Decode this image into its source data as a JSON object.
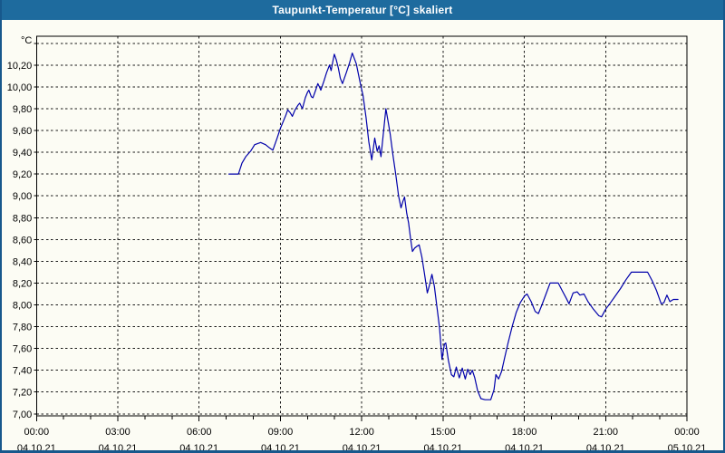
{
  "window": {
    "title": "Taupunkt-Temperatur [°C] skaliert"
  },
  "colors": {
    "titlebar": "#1E6B9E",
    "frame": "#17588C",
    "background": "#FCFCF4",
    "series_line": "#0000AA",
    "grid": "#1a1a1a",
    "text": "#000000"
  },
  "chart_data": {
    "type": "line",
    "title": "Taupunkt-Temperatur [°C] skaliert",
    "y_unit": "°C",
    "xlabel": "",
    "ylabel": "",
    "grid": "dashed",
    "legend_position": "none",
    "ylim": [
      7.0,
      10.4
    ],
    "y_tick_step": 0.2,
    "xlim_hours": [
      0,
      24
    ],
    "x_minor_tick_hours": 1,
    "y_ticks": [
      {
        "v": 10.4,
        "label": ""
      },
      {
        "v": 10.2,
        "label": "10,20"
      },
      {
        "v": 10.0,
        "label": "10,00"
      },
      {
        "v": 9.8,
        "label": "9,80"
      },
      {
        "v": 9.6,
        "label": "9,60"
      },
      {
        "v": 9.4,
        "label": "9,40"
      },
      {
        "v": 9.2,
        "label": "9,20"
      },
      {
        "v": 9.0,
        "label": "9,00"
      },
      {
        "v": 8.8,
        "label": "8,80"
      },
      {
        "v": 8.6,
        "label": "8,60"
      },
      {
        "v": 8.4,
        "label": "8,40"
      },
      {
        "v": 8.2,
        "label": "8,20"
      },
      {
        "v": 8.0,
        "label": "8,00"
      },
      {
        "v": 7.8,
        "label": "7,80"
      },
      {
        "v": 7.6,
        "label": "7,60"
      },
      {
        "v": 7.4,
        "label": "7,40"
      },
      {
        "v": 7.2,
        "label": "7,20"
      },
      {
        "v": 7.0,
        "label": "7,00"
      }
    ],
    "x_ticks": [
      {
        "hour": 0,
        "time": "00:00",
        "date": "04.10.21"
      },
      {
        "hour": 3,
        "time": "03:00",
        "date": "04.10.21"
      },
      {
        "hour": 6,
        "time": "06:00",
        "date": "04.10.21"
      },
      {
        "hour": 9,
        "time": "09:00",
        "date": "04.10.21"
      },
      {
        "hour": 12,
        "time": "12:00",
        "date": "04.10.21"
      },
      {
        "hour": 15,
        "time": "15:00",
        "date": "04.10.21"
      },
      {
        "hour": 18,
        "time": "18:00",
        "date": "04.10.21"
      },
      {
        "hour": 21,
        "time": "21:00",
        "date": "04.10.21"
      },
      {
        "hour": 24,
        "time": "00:00",
        "date": "05.10.21"
      }
    ],
    "series": [
      {
        "name": "Taupunkt-Temperatur",
        "color": "#0000AA",
        "points_hour_value": [
          [
            7.1,
            9.2
          ],
          [
            7.45,
            9.2
          ],
          [
            7.58,
            9.3
          ],
          [
            7.72,
            9.36
          ],
          [
            7.9,
            9.41
          ],
          [
            8.05,
            9.47
          ],
          [
            8.27,
            9.49
          ],
          [
            8.45,
            9.47
          ],
          [
            8.6,
            9.44
          ],
          [
            8.72,
            9.42
          ],
          [
            8.88,
            9.53
          ],
          [
            9.0,
            9.62
          ],
          [
            9.1,
            9.68
          ],
          [
            9.2,
            9.74
          ],
          [
            9.27,
            9.79
          ],
          [
            9.37,
            9.76
          ],
          [
            9.44,
            9.73
          ],
          [
            9.54,
            9.79
          ],
          [
            9.64,
            9.83
          ],
          [
            9.71,
            9.85
          ],
          [
            9.81,
            9.8
          ],
          [
            9.92,
            9.9
          ],
          [
            10.0,
            9.95
          ],
          [
            10.05,
            9.97
          ],
          [
            10.14,
            9.91
          ],
          [
            10.2,
            9.9
          ],
          [
            10.3,
            9.97
          ],
          [
            10.38,
            10.03
          ],
          [
            10.44,
            10.0
          ],
          [
            10.49,
            9.97
          ],
          [
            10.6,
            10.05
          ],
          [
            10.7,
            10.13
          ],
          [
            10.81,
            10.2
          ],
          [
            10.87,
            10.15
          ],
          [
            10.93,
            10.23
          ],
          [
            10.99,
            10.3
          ],
          [
            11.06,
            10.25
          ],
          [
            11.14,
            10.17
          ],
          [
            11.21,
            10.08
          ],
          [
            11.29,
            10.03
          ],
          [
            11.43,
            10.13
          ],
          [
            11.55,
            10.22
          ],
          [
            11.65,
            10.31
          ],
          [
            11.8,
            10.21
          ],
          [
            11.94,
            10.04
          ],
          [
            12.05,
            9.92
          ],
          [
            12.16,
            9.72
          ],
          [
            12.26,
            9.5
          ],
          [
            12.37,
            9.33
          ],
          [
            12.48,
            9.53
          ],
          [
            12.57,
            9.41
          ],
          [
            12.64,
            9.46
          ],
          [
            12.71,
            9.36
          ],
          [
            12.8,
            9.58
          ],
          [
            12.89,
            9.8
          ],
          [
            12.98,
            9.67
          ],
          [
            13.05,
            9.57
          ],
          [
            13.15,
            9.38
          ],
          [
            13.26,
            9.19
          ],
          [
            13.36,
            9.0
          ],
          [
            13.45,
            8.89
          ],
          [
            13.52,
            8.95
          ],
          [
            13.58,
            8.99
          ],
          [
            13.66,
            8.84
          ],
          [
            13.73,
            8.75
          ],
          [
            13.8,
            8.61
          ],
          [
            13.87,
            8.49
          ],
          [
            13.95,
            8.52
          ],
          [
            14.05,
            8.54
          ],
          [
            14.12,
            8.55
          ],
          [
            14.22,
            8.44
          ],
          [
            14.32,
            8.28
          ],
          [
            14.42,
            8.11
          ],
          [
            14.5,
            8.18
          ],
          [
            14.59,
            8.28
          ],
          [
            14.68,
            8.17
          ],
          [
            14.77,
            7.99
          ],
          [
            14.87,
            7.79
          ],
          [
            14.96,
            7.5
          ],
          [
            15.05,
            7.64
          ],
          [
            15.1,
            7.65
          ],
          [
            15.2,
            7.49
          ],
          [
            15.31,
            7.36
          ],
          [
            15.4,
            7.34
          ],
          [
            15.49,
            7.43
          ],
          [
            15.6,
            7.33
          ],
          [
            15.71,
            7.42
          ],
          [
            15.82,
            7.32
          ],
          [
            15.91,
            7.41
          ],
          [
            16.0,
            7.36
          ],
          [
            16.08,
            7.4
          ],
          [
            16.17,
            7.33
          ],
          [
            16.28,
            7.21
          ],
          [
            16.4,
            7.14
          ],
          [
            16.55,
            7.13
          ],
          [
            16.76,
            7.13
          ],
          [
            16.88,
            7.22
          ],
          [
            16.95,
            7.36
          ],
          [
            17.05,
            7.32
          ],
          [
            17.16,
            7.39
          ],
          [
            17.28,
            7.52
          ],
          [
            17.4,
            7.65
          ],
          [
            17.55,
            7.8
          ],
          [
            17.7,
            7.93
          ],
          [
            17.85,
            8.02
          ],
          [
            18.0,
            8.08
          ],
          [
            18.1,
            8.1
          ],
          [
            18.25,
            8.03
          ],
          [
            18.4,
            7.94
          ],
          [
            18.52,
            7.92
          ],
          [
            18.65,
            8.0
          ],
          [
            18.8,
            8.1
          ],
          [
            18.95,
            8.2
          ],
          [
            19.25,
            8.2
          ],
          [
            19.4,
            8.13
          ],
          [
            19.55,
            8.06
          ],
          [
            19.65,
            8.01
          ],
          [
            19.8,
            8.11
          ],
          [
            19.95,
            8.12
          ],
          [
            20.05,
            8.09
          ],
          [
            20.2,
            8.1
          ],
          [
            20.35,
            8.03
          ],
          [
            20.55,
            7.96
          ],
          [
            20.75,
            7.9
          ],
          [
            20.85,
            7.89
          ],
          [
            21.0,
            7.96
          ],
          [
            21.15,
            8.01
          ],
          [
            21.35,
            8.08
          ],
          [
            21.55,
            8.15
          ],
          [
            21.75,
            8.23
          ],
          [
            21.95,
            8.3
          ],
          [
            22.55,
            8.3
          ],
          [
            22.72,
            8.22
          ],
          [
            22.88,
            8.13
          ],
          [
            23.05,
            8.01
          ],
          [
            23.15,
            8.02
          ],
          [
            23.26,
            8.09
          ],
          [
            23.37,
            8.03
          ],
          [
            23.5,
            8.05
          ],
          [
            23.67,
            8.05
          ]
        ]
      }
    ]
  }
}
